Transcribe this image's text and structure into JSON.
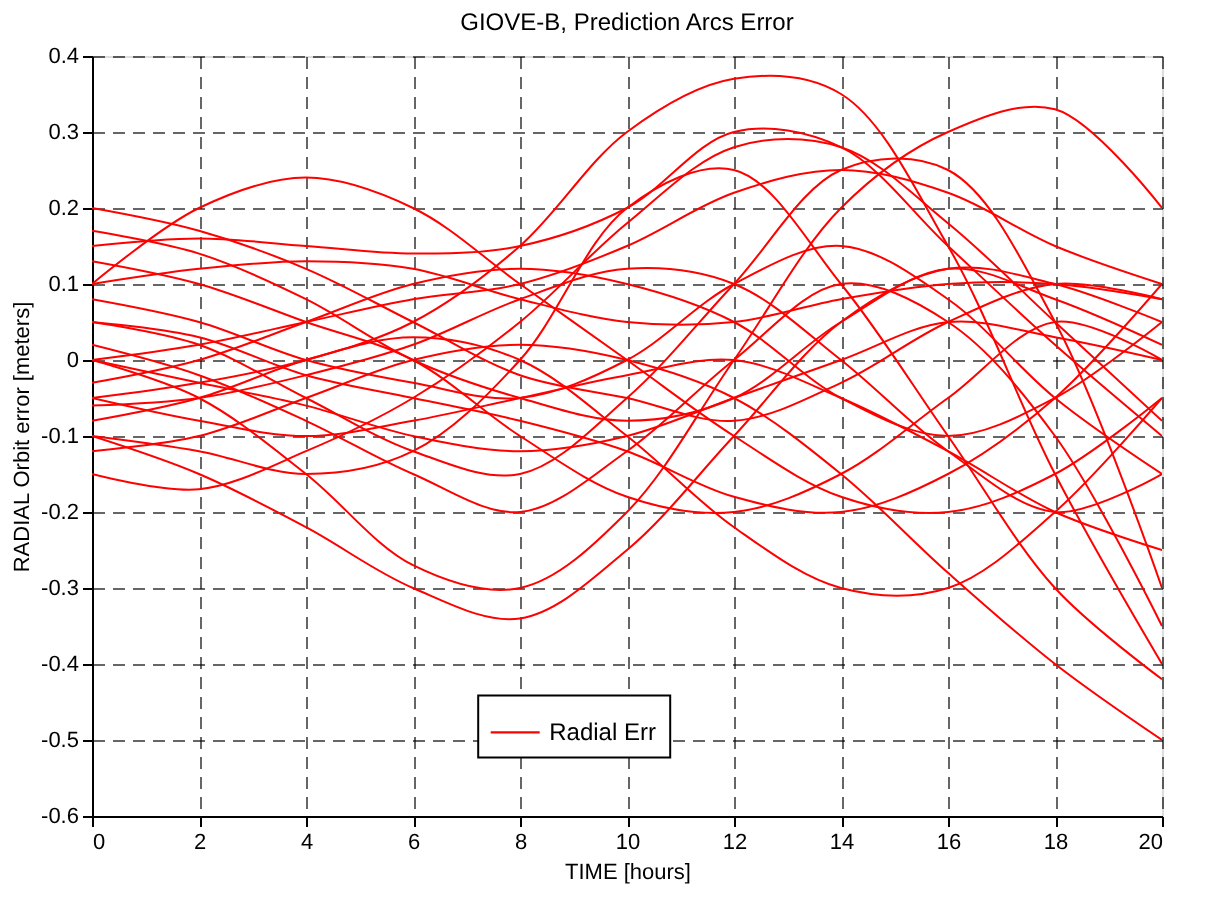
{
  "chart_data": {
    "type": "line",
    "title": "GIOVE-B, Prediction Arcs Error",
    "xlabel": "TIME [hours]",
    "ylabel": "RADIAL Orbit error [meters]",
    "x": [
      0,
      2,
      4,
      6,
      8,
      10,
      12,
      14,
      16,
      18,
      20
    ],
    "xlim": [
      0,
      20
    ],
    "xticks": [
      0,
      2,
      4,
      6,
      8,
      10,
      12,
      14,
      16,
      18,
      20
    ],
    "ylim": [
      -0.6,
      0.4
    ],
    "yticks": [
      -0.6,
      -0.5,
      -0.4,
      -0.3,
      -0.2,
      -0.1,
      0,
      0.1,
      0.2,
      0.3,
      0.4
    ],
    "grid": true,
    "legend": "bottom",
    "marker": "none",
    "line_style": "solid",
    "series": [
      {
        "name": "Radial Err",
        "color": "#ff0000",
        "values": [
          0.2,
          0.17,
          0.12,
          0.05,
          -0.02,
          -0.05,
          -0.08,
          -0.03,
          0.05,
          0.1,
          0.08
        ]
      },
      {
        "color": "#ff0000",
        "values": [
          0.1,
          0.2,
          0.24,
          0.2,
          0.1,
          0.0,
          -0.1,
          -0.18,
          -0.2,
          -0.15,
          -0.05
        ]
      },
      {
        "color": "#ff0000",
        "values": [
          0.15,
          0.16,
          0.15,
          0.14,
          0.15,
          0.2,
          0.3,
          0.28,
          0.15,
          0.02,
          -0.1
        ]
      },
      {
        "color": "#ff0000",
        "values": [
          -0.05,
          -0.03,
          0.0,
          0.05,
          0.15,
          0.3,
          0.37,
          0.35,
          0.15,
          -0.15,
          -0.4
        ]
      },
      {
        "color": "#ff0000",
        "values": [
          0.0,
          -0.05,
          -0.15,
          -0.27,
          -0.3,
          -0.2,
          0.0,
          0.2,
          0.3,
          0.33,
          0.2
        ]
      },
      {
        "color": "#ff0000",
        "values": [
          -0.1,
          -0.15,
          -0.22,
          -0.3,
          -0.34,
          -0.25,
          -0.1,
          0.05,
          0.12,
          0.1,
          0.05
        ]
      },
      {
        "color": "#ff0000",
        "values": [
          0.05,
          0.02,
          -0.05,
          -0.12,
          -0.15,
          -0.05,
          0.1,
          0.25,
          0.25,
          0.05,
          -0.3
        ]
      },
      {
        "color": "#ff0000",
        "values": [
          -0.12,
          -0.1,
          -0.05,
          0.0,
          0.02,
          0.0,
          -0.05,
          -0.15,
          -0.28,
          -0.4,
          -0.5
        ]
      },
      {
        "color": "#ff0000",
        "values": [
          0.1,
          0.12,
          0.13,
          0.12,
          0.08,
          0.05,
          0.05,
          0.08,
          0.1,
          0.1,
          0.08
        ]
      },
      {
        "color": "#ff0000",
        "values": [
          -0.05,
          -0.08,
          -0.1,
          -0.08,
          -0.05,
          -0.02,
          0.0,
          -0.05,
          -0.12,
          -0.2,
          -0.25
        ]
      },
      {
        "color": "#ff0000",
        "values": [
          0.0,
          0.02,
          0.05,
          0.08,
          0.1,
          0.15,
          0.22,
          0.25,
          0.22,
          0.15,
          0.1
        ]
      },
      {
        "color": "#ff0000",
        "values": [
          0.05,
          0.03,
          -0.02,
          -0.05,
          -0.08,
          -0.12,
          -0.18,
          -0.2,
          -0.15,
          -0.05,
          0.1
        ]
      },
      {
        "color": "#ff0000",
        "values": [
          -0.15,
          -0.17,
          -0.12,
          -0.05,
          0.05,
          0.18,
          0.28,
          0.28,
          0.18,
          0.05,
          -0.08
        ]
      },
      {
        "color": "#ff0000",
        "values": [
          0.13,
          0.1,
          0.05,
          0.0,
          -0.1,
          -0.18,
          -0.2,
          -0.15,
          -0.05,
          0.05,
          0.0
        ]
      },
      {
        "color": "#ff0000",
        "values": [
          -0.08,
          -0.05,
          0.0,
          0.03,
          0.0,
          -0.1,
          -0.22,
          -0.3,
          -0.3,
          -0.2,
          -0.05
        ]
      },
      {
        "color": "#ff0000",
        "values": [
          0.02,
          -0.02,
          -0.08,
          -0.15,
          -0.2,
          -0.12,
          0.0,
          0.1,
          0.05,
          -0.1,
          -0.35
        ]
      },
      {
        "color": "#ff0000",
        "values": [
          -0.03,
          0.0,
          0.05,
          0.1,
          0.12,
          0.1,
          0.05,
          -0.05,
          -0.1,
          -0.05,
          0.05
        ]
      },
      {
        "color": "#ff0000",
        "values": [
          0.08,
          0.05,
          0.0,
          -0.03,
          -0.05,
          0.0,
          0.1,
          0.15,
          0.08,
          -0.05,
          -0.15
        ]
      },
      {
        "color": "#ff0000",
        "values": [
          -0.1,
          -0.12,
          -0.15,
          -0.12,
          0.0,
          0.2,
          0.25,
          0.1,
          -0.1,
          -0.3,
          -0.42
        ]
      },
      {
        "color": "#ff0000",
        "values": [
          0.0,
          -0.03,
          -0.06,
          -0.1,
          -0.12,
          -0.1,
          -0.05,
          0.0,
          0.05,
          0.03,
          0.0
        ]
      },
      {
        "color": "#ff0000",
        "values": [
          0.17,
          0.14,
          0.08,
          0.0,
          -0.05,
          -0.08,
          -0.05,
          0.05,
          0.12,
          0.08,
          0.02
        ]
      },
      {
        "color": "#ff0000",
        "values": [
          -0.06,
          -0.05,
          -0.02,
          0.02,
          0.08,
          0.12,
          0.1,
          0.0,
          -0.12,
          -0.2,
          -0.15
        ]
      }
    ]
  }
}
